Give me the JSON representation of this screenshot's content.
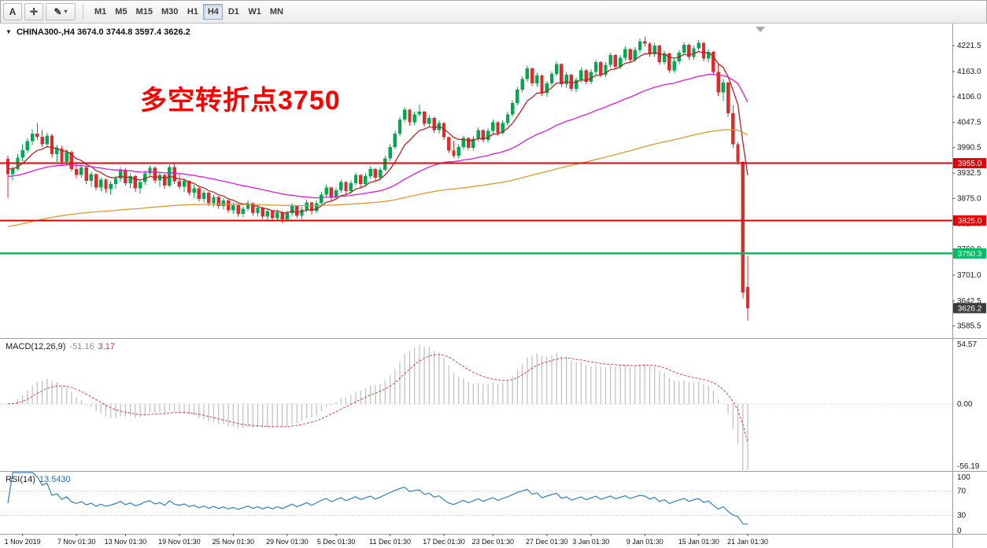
{
  "toolbar": {
    "cursor_glyph": "A",
    "crosshair_glyph": "✛",
    "pencil_glyph": "✎",
    "caret_glyph": "▾",
    "timeframes": [
      "M1",
      "M5",
      "M15",
      "M30",
      "H1",
      "H4",
      "D1",
      "W1",
      "MN"
    ],
    "active_timeframe": "H4"
  },
  "chart_header": {
    "expander": "▼",
    "symbol_period": "CHINA300-,H4",
    "ohlc_text": "3674.0 3744.8 3597.4 3626.2"
  },
  "annotation": {
    "text": "多空转折点3750",
    "color": "#ff0000"
  },
  "indicators": {
    "macd": {
      "label": "MACD(12,26,9)",
      "value_main": "-51.16",
      "value_signal": "3.17"
    },
    "rsi": {
      "label": "RSI(14)",
      "value": "13.5430"
    }
  },
  "chart_data": {
    "type": "candlestick",
    "symbol": "CHINA300-",
    "timeframe": "H4",
    "last_ohlc": {
      "open": 3674.0,
      "high": 3744.8,
      "low": 3597.4,
      "close": 3626.2
    },
    "price_range": [
      3560,
      4270
    ],
    "up_color": "#00a94f",
    "down_color": "#dd2c2c",
    "y_ticks": [
      4221.5,
      4163.0,
      4106.0,
      4047.5,
      3990.5,
      3932.5,
      3875.0,
      3817.5,
      3760.0,
      3701.0,
      3642.5,
      3585.5
    ],
    "x_ticks": [
      {
        "label": "1 Nov 2019",
        "index": 3
      },
      {
        "label": "7 Nov 01:30",
        "index": 14
      },
      {
        "label": "13 Nov 01:30",
        "index": 24
      },
      {
        "label": "19 Nov 01:30",
        "index": 35
      },
      {
        "label": "25 Nov 01:30",
        "index": 46
      },
      {
        "label": "29 Nov 01:30",
        "index": 57
      },
      {
        "label": "5 Dec 01:30",
        "index": 67
      },
      {
        "label": "11 Dec 01:30",
        "index": 78
      },
      {
        "label": "17 Dec 01:30",
        "index": 89
      },
      {
        "label": "23 Dec 01:30",
        "index": 99
      },
      {
        "label": "27 Dec 01:30",
        "index": 110
      },
      {
        "label": "3 Jan 01:30",
        "index": 119
      },
      {
        "label": "9 Jan 01:30",
        "index": 130
      },
      {
        "label": "15 Jan 01:30",
        "index": 141
      },
      {
        "label": "21 Jan 01:30",
        "index": 151
      }
    ],
    "levels": [
      {
        "price": 3955.0,
        "label": "3955.0",
        "color": "#e60000",
        "width": 2
      },
      {
        "price": 3825.0,
        "label": "3825.0",
        "color": "#e60000",
        "width": 2
      },
      {
        "price": 3750.3,
        "label": "3750.3",
        "color": "#00bf63",
        "width": 2.5
      }
    ],
    "current_price": {
      "value": 3626.2,
      "label": "3626.2",
      "color": "#3d3d3d"
    },
    "moving_averages": [
      {
        "period": 9,
        "seed": 3945,
        "color": "#b22222"
      },
      {
        "period": 45,
        "seed": 3925,
        "color": "#d81bd8"
      },
      {
        "period": 150,
        "seed": 3810,
        "color": "#d79a2e"
      }
    ],
    "macd": {
      "fast": 12,
      "slow": 26,
      "signal": 9,
      "range": [
        -56.19,
        54.57
      ],
      "scale_labels": [
        "54.57",
        "0.00",
        "-56.19"
      ],
      "histogram_color": "#bdbdbd",
      "signal_color": "#d94040"
    },
    "rsi": {
      "period": 14,
      "range": [
        0,
        100
      ],
      "scale_labels": [
        "100",
        "70",
        "30",
        "0"
      ],
      "levels": [
        70,
        30
      ],
      "color": "#2f7fbe"
    },
    "candles": [
      [
        3965,
        3972,
        3876,
        3930
      ],
      [
        3930,
        3948,
        3916,
        3942
      ],
      [
        3942,
        3976,
        3938,
        3968
      ],
      [
        3968,
        3998,
        3960,
        3985
      ],
      [
        3985,
        4012,
        3978,
        4005
      ],
      [
        4005,
        4032,
        3996,
        4022
      ],
      [
        4022,
        4046,
        4008,
        4015
      ],
      [
        4015,
        4030,
        3992,
        3998
      ],
      [
        3998,
        4024,
        3990,
        4018
      ],
      [
        4018,
        4022,
        3968,
        3976
      ],
      [
        3976,
        3996,
        3958,
        3988
      ],
      [
        3988,
        3994,
        3952,
        3958
      ],
      [
        3958,
        3986,
        3950,
        3980
      ],
      [
        3980,
        3984,
        3936,
        3942
      ],
      [
        3942,
        3958,
        3920,
        3928
      ],
      [
        3928,
        3950,
        3922,
        3945
      ],
      [
        3945,
        3948,
        3908,
        3915
      ],
      [
        3915,
        3936,
        3902,
        3930
      ],
      [
        3930,
        3932,
        3894,
        3900
      ],
      [
        3900,
        3922,
        3892,
        3918
      ],
      [
        3918,
        3920,
        3888,
        3896
      ],
      [
        3896,
        3914,
        3884,
        3908
      ],
      [
        3908,
        3926,
        3896,
        3920
      ],
      [
        3920,
        3946,
        3912,
        3940
      ],
      [
        3940,
        3944,
        3904,
        3910
      ],
      [
        3910,
        3932,
        3898,
        3926
      ],
      [
        3926,
        3928,
        3890,
        3898
      ],
      [
        3898,
        3918,
        3886,
        3912
      ],
      [
        3912,
        3938,
        3906,
        3932
      ],
      [
        3932,
        3950,
        3924,
        3944
      ],
      [
        3944,
        3948,
        3910,
        3916
      ],
      [
        3916,
        3934,
        3902,
        3928
      ],
      [
        3928,
        3930,
        3896,
        3904
      ],
      [
        3904,
        3952,
        3900,
        3946
      ],
      [
        3946,
        3954,
        3908,
        3914
      ],
      [
        3914,
        3930,
        3896,
        3902
      ],
      [
        3902,
        3920,
        3890,
        3915
      ],
      [
        3915,
        3916,
        3882,
        3888
      ],
      [
        3888,
        3906,
        3876,
        3898
      ],
      [
        3898,
        3902,
        3868,
        3874
      ],
      [
        3874,
        3894,
        3866,
        3888
      ],
      [
        3888,
        3890,
        3858,
        3864
      ],
      [
        3864,
        3884,
        3856,
        3878
      ],
      [
        3878,
        3880,
        3852,
        3858
      ],
      [
        3858,
        3876,
        3850,
        3870
      ],
      [
        3870,
        3872,
        3842,
        3848
      ],
      [
        3848,
        3866,
        3840,
        3860
      ],
      [
        3860,
        3862,
        3834,
        3840
      ],
      [
        3840,
        3858,
        3832,
        3852
      ],
      [
        3852,
        3870,
        3846,
        3864
      ],
      [
        3864,
        3866,
        3836,
        3842
      ],
      [
        3842,
        3860,
        3834,
        3854
      ],
      [
        3854,
        3856,
        3828,
        3834
      ],
      [
        3834,
        3852,
        3826,
        3846
      ],
      [
        3846,
        3848,
        3822,
        3830
      ],
      [
        3830,
        3850,
        3824,
        3844
      ],
      [
        3844,
        3846,
        3820,
        3828
      ],
      [
        3828,
        3848,
        3822,
        3842
      ],
      [
        3842,
        3864,
        3836,
        3858
      ],
      [
        3858,
        3860,
        3830,
        3836
      ],
      [
        3836,
        3856,
        3828,
        3850
      ],
      [
        3850,
        3872,
        3844,
        3866
      ],
      [
        3866,
        3868,
        3838,
        3846
      ],
      [
        3846,
        3870,
        3842,
        3864
      ],
      [
        3864,
        3890,
        3860,
        3884
      ],
      [
        3884,
        3906,
        3878,
        3900
      ],
      [
        3900,
        3902,
        3870,
        3878
      ],
      [
        3878,
        3900,
        3872,
        3894
      ],
      [
        3894,
        3918,
        3888,
        3912
      ],
      [
        3912,
        3914,
        3884,
        3892
      ],
      [
        3892,
        3916,
        3886,
        3910
      ],
      [
        3910,
        3934,
        3904,
        3928
      ],
      [
        3928,
        3930,
        3900,
        3908
      ],
      [
        3908,
        3932,
        3902,
        3926
      ],
      [
        3926,
        3948,
        3920,
        3942
      ],
      [
        3942,
        3944,
        3914,
        3922
      ],
      [
        3922,
        3946,
        3916,
        3940
      ],
      [
        3940,
        3972,
        3936,
        3966
      ],
      [
        3966,
        3998,
        3960,
        3992
      ],
      [
        3992,
        4028,
        3986,
        4022
      ],
      [
        4022,
        4060,
        4016,
        4054
      ],
      [
        4054,
        4082,
        4048,
        4076
      ],
      [
        4076,
        4078,
        4040,
        4048
      ],
      [
        4048,
        4072,
        4042,
        4066
      ],
      [
        4066,
        4088,
        4060,
        4072
      ],
      [
        4072,
        4074,
        4038,
        4044
      ],
      [
        4044,
        4064,
        4036,
        4058
      ],
      [
        4058,
        4060,
        4024,
        4030
      ],
      [
        4030,
        4052,
        4022,
        4046
      ],
      [
        4046,
        4048,
        4008,
        4014
      ],
      [
        4014,
        4016,
        3978,
        3984
      ],
      [
        3984,
        4006,
        3968,
        3972
      ],
      [
        3972,
        3998,
        3966,
        3992
      ],
      [
        3992,
        4018,
        3986,
        4012
      ],
      [
        4012,
        4014,
        3984,
        3990
      ],
      [
        3990,
        4016,
        3984,
        4010
      ],
      [
        4010,
        4036,
        4004,
        4030
      ],
      [
        4030,
        4032,
        4002,
        4008
      ],
      [
        4008,
        4034,
        4002,
        4028
      ],
      [
        4028,
        4054,
        4022,
        4048
      ],
      [
        4048,
        4050,
        4018,
        4024
      ],
      [
        4024,
        4052,
        4020,
        4046
      ],
      [
        4046,
        4072,
        4040,
        4066
      ],
      [
        4066,
        4098,
        4060,
        4092
      ],
      [
        4092,
        4128,
        4086,
        4122
      ],
      [
        4122,
        4152,
        4116,
        4146
      ],
      [
        4146,
        4176,
        4140,
        4170
      ],
      [
        4170,
        4172,
        4130,
        4136
      ],
      [
        4136,
        4160,
        4128,
        4154
      ],
      [
        4154,
        4156,
        4108,
        4114
      ],
      [
        4114,
        4142,
        4106,
        4136
      ],
      [
        4136,
        4164,
        4130,
        4158
      ],
      [
        4158,
        4186,
        4152,
        4180
      ],
      [
        4180,
        4182,
        4128,
        4134
      ],
      [
        4134,
        4162,
        4126,
        4156
      ],
      [
        4156,
        4158,
        4118,
        4124
      ],
      [
        4124,
        4150,
        4116,
        4144
      ],
      [
        4144,
        4172,
        4138,
        4166
      ],
      [
        4166,
        4168,
        4134,
        4140
      ],
      [
        4140,
        4168,
        4134,
        4162
      ],
      [
        4162,
        4190,
        4156,
        4184
      ],
      [
        4184,
        4186,
        4150,
        4156
      ],
      [
        4156,
        4184,
        4150,
        4178
      ],
      [
        4178,
        4206,
        4172,
        4200
      ],
      [
        4200,
        4202,
        4168,
        4174
      ],
      [
        4174,
        4200,
        4168,
        4194
      ],
      [
        4194,
        4220,
        4188,
        4214
      ],
      [
        4214,
        4216,
        4184,
        4190
      ],
      [
        4190,
        4218,
        4184,
        4212
      ],
      [
        4212,
        4238,
        4206,
        4232
      ],
      [
        4232,
        4242,
        4220,
        4226
      ],
      [
        4226,
        4230,
        4196,
        4202
      ],
      [
        4202,
        4228,
        4196,
        4222
      ],
      [
        4222,
        4224,
        4178,
        4184
      ],
      [
        4184,
        4210,
        4178,
        4204
      ],
      [
        4204,
        4206,
        4160,
        4166
      ],
      [
        4166,
        4192,
        4160,
        4186
      ],
      [
        4186,
        4212,
        4180,
        4206
      ],
      [
        4206,
        4230,
        4200,
        4224
      ],
      [
        4224,
        4226,
        4190,
        4196
      ],
      [
        4196,
        4222,
        4190,
        4216
      ],
      [
        4216,
        4234,
        4210,
        4228
      ],
      [
        4228,
        4230,
        4186,
        4192
      ],
      [
        4192,
        4214,
        4184,
        4208
      ],
      [
        4208,
        4210,
        4156,
        4162
      ],
      [
        4162,
        4180,
        4108,
        4116
      ],
      [
        4116,
        4146,
        4096,
        4138
      ],
      [
        4138,
        4140,
        4060,
        4068
      ],
      [
        4068,
        4086,
        3990,
        3998
      ],
      [
        3998,
        4002,
        3952,
        3958
      ],
      [
        3958,
        3960,
        3648,
        3662
      ],
      [
        3674,
        3744.8,
        3597.4,
        3626.2
      ]
    ]
  }
}
